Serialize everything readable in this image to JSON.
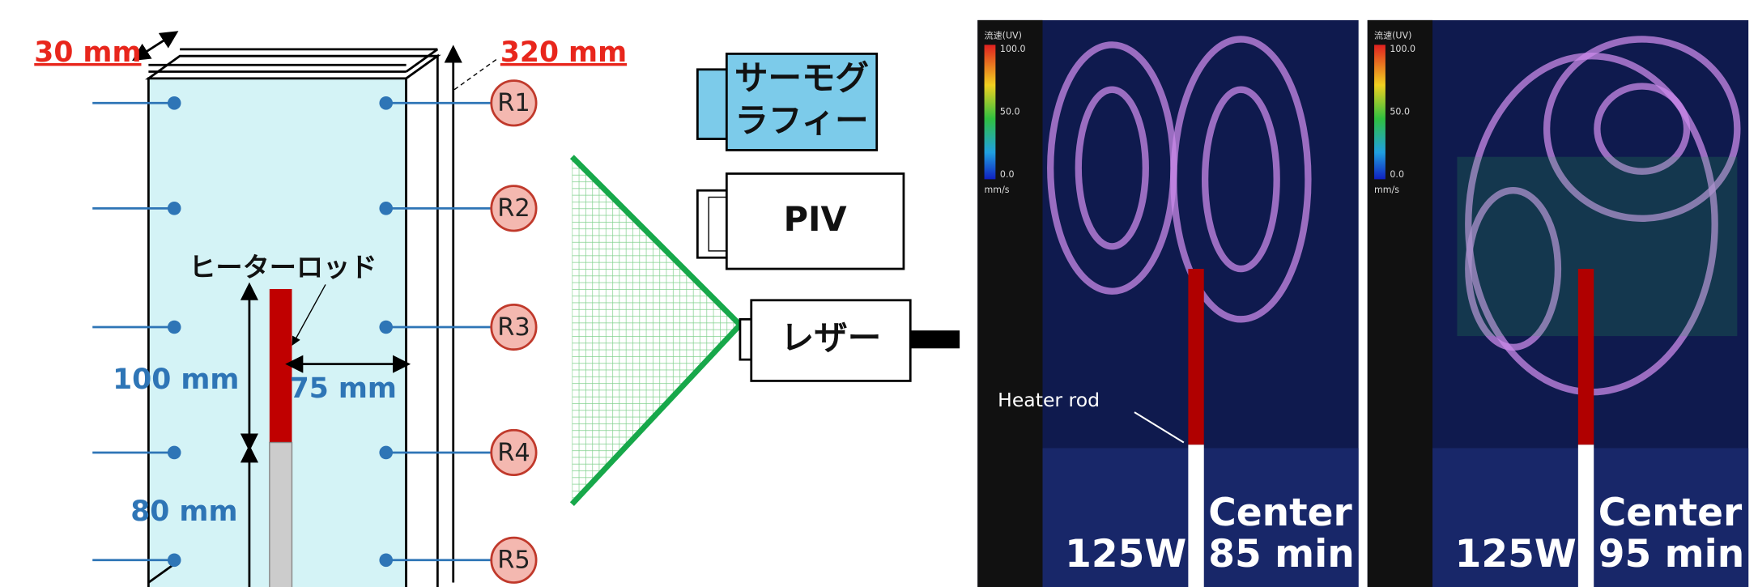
{
  "tank": {
    "width_label": "30 mm",
    "height_label": "320 mm",
    "heater_label": "ヒーターロッド",
    "dim_heater": "100 mm",
    "dim_offset": "75 mm",
    "dim_bottom": "80 mm",
    "sensors": [
      "R1",
      "R2",
      "R3",
      "R4",
      "R5"
    ]
  },
  "devices": {
    "thermography": [
      "サーモグ",
      "ラフィー"
    ],
    "piv": "PIV",
    "laser": "レザー"
  },
  "panels": [
    {
      "scale_title": "流速(UV)",
      "scale_ticks": [
        "100.0",
        "50.0",
        "0.0"
      ],
      "scale_unit": "mm/s",
      "annotation": "Heater rod",
      "power": "125W",
      "position": "Center",
      "time": "85 min"
    },
    {
      "scale_title": "流速(UV)",
      "scale_ticks": [
        "100.0",
        "50.0",
        "0.0"
      ],
      "scale_unit": "mm/s",
      "power": "125W",
      "position": "Center",
      "time": "95 min"
    }
  ]
}
